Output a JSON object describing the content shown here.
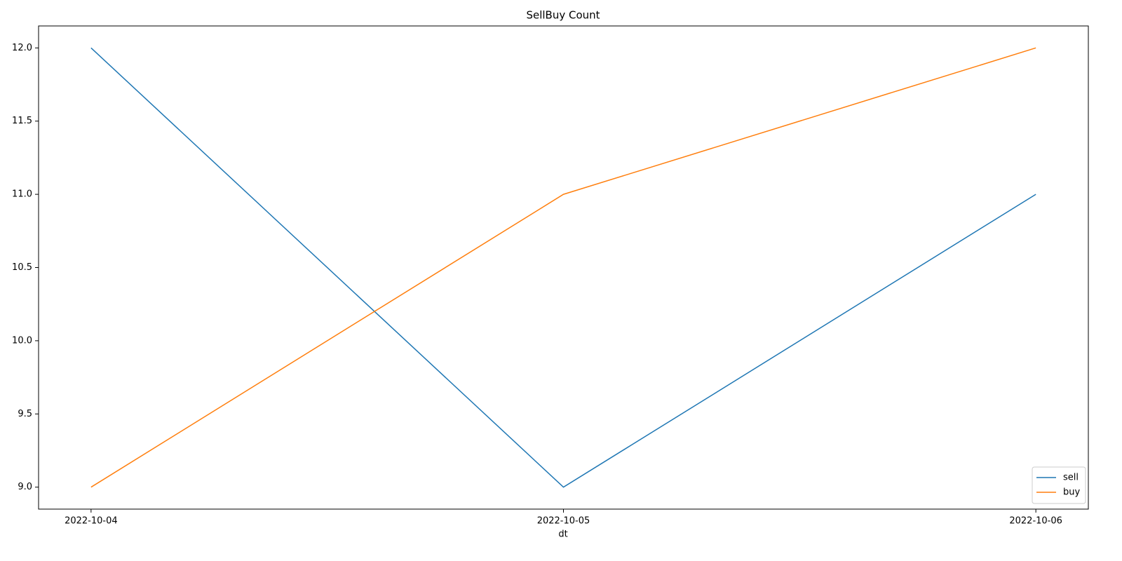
{
  "chart_data": {
    "type": "line",
    "title": "SellBuy Count",
    "x_label": "dt",
    "categories": [
      "2022-10-04",
      "2022-10-05",
      "2022-10-06"
    ],
    "series": [
      {
        "name": "sell",
        "color": "#1f77b4",
        "values": [
          12,
          9,
          11
        ]
      },
      {
        "name": "buy",
        "color": "#ff7f0e",
        "values": [
          9,
          11,
          12
        ]
      }
    ],
    "ylim": [
      8.85,
      12.15
    ],
    "yticks": [
      {
        "value": 9,
        "label": "9.0"
      },
      9.5,
      {
        "value": 10,
        "label": "10.0"
      },
      10.5,
      {
        "value": 11,
        "label": "11.0"
      },
      11.5,
      {
        "value": 12,
        "label": "12.0"
      }
    ],
    "grid": false,
    "legend": "lower right"
  }
}
